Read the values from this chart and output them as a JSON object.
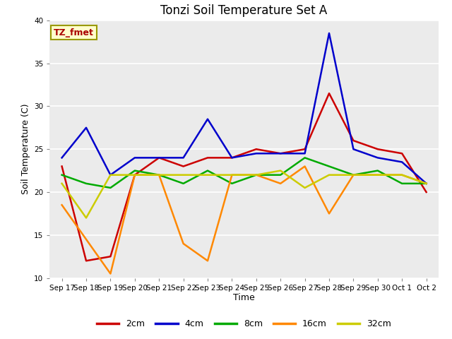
{
  "title": "Tonzi Soil Temperature Set A",
  "xlabel": "Time",
  "ylabel": "Soil Temperature (C)",
  "annotation": "TZ_fmet",
  "xlabels": [
    "Sep 17",
    "Sep 18",
    "Sep 19",
    "Sep 20",
    "Sep 21",
    "Sep 22",
    "Sep 23",
    "Sep 24",
    "Sep 25",
    "Sep 26",
    "Sep 27",
    "Sep 28",
    "Sep 29",
    "Sep 30",
    "Oct 1",
    "Oct 2"
  ],
  "ylim": [
    10,
    40
  ],
  "yticks": [
    10,
    15,
    20,
    25,
    30,
    35,
    40
  ],
  "series": {
    "2cm": {
      "color": "#cc0000",
      "linewidth": 1.8,
      "values": [
        23,
        12,
        12.5,
        22,
        24,
        23,
        24,
        24,
        25,
        24.5,
        25,
        31.5,
        26,
        25,
        24.5,
        20
      ]
    },
    "4cm": {
      "color": "#0000cc",
      "linewidth": 1.8,
      "values": [
        24,
        27.5,
        22,
        24,
        24,
        24,
        28.5,
        24,
        24.5,
        24.5,
        24.5,
        38.5,
        25,
        24,
        23.5,
        21
      ]
    },
    "8cm": {
      "color": "#00aa00",
      "linewidth": 1.8,
      "values": [
        22,
        21,
        20.5,
        22.5,
        22,
        21,
        22.5,
        21,
        22,
        22,
        24,
        23,
        22,
        22.5,
        21,
        21
      ]
    },
    "16cm": {
      "color": "#ff8800",
      "linewidth": 1.8,
      "values": [
        18.5,
        14.5,
        10.5,
        22,
        22,
        14,
        12,
        22,
        22,
        21,
        23,
        17.5,
        22,
        22,
        22,
        21
      ]
    },
    "32cm": {
      "color": "#cccc00",
      "linewidth": 1.8,
      "values": [
        21,
        17,
        22,
        22,
        22,
        22,
        22,
        22,
        22,
        22.5,
        20.5,
        22,
        22,
        22,
        22,
        21
      ]
    }
  },
  "legend_order": [
    "2cm",
    "4cm",
    "8cm",
    "16cm",
    "32cm"
  ],
  "bg_color": "#ebebeb",
  "fig_color": "#ffffff",
  "title_fontsize": 12,
  "axis_label_fontsize": 9,
  "tick_fontsize": 7.5,
  "annotation_fontsize": 9,
  "annotation_bg": "#ffffcc",
  "annotation_border": "#999900",
  "annotation_text_color": "#aa0000"
}
